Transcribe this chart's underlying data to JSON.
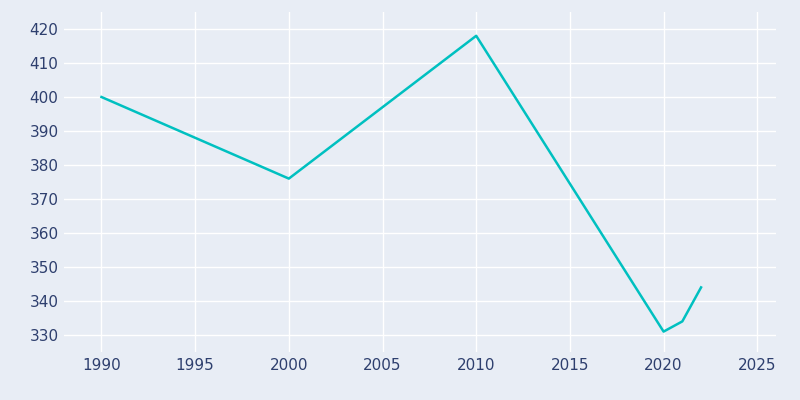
{
  "years": [
    1990,
    2000,
    2010,
    2020,
    2021,
    2022
  ],
  "population": [
    400,
    376,
    418,
    331,
    334,
    344
  ],
  "line_color": "#00C0C0",
  "bg_color": "#E8EDF5",
  "grid_color": "#FFFFFF",
  "xlim": [
    1988,
    2026
  ],
  "ylim": [
    325,
    425
  ],
  "xticks": [
    1990,
    1995,
    2000,
    2005,
    2010,
    2015,
    2020,
    2025
  ],
  "yticks": [
    330,
    340,
    350,
    360,
    370,
    380,
    390,
    400,
    410,
    420
  ],
  "linewidth": 1.8,
  "tick_label_color": "#2E3F6E",
  "tick_fontsize": 11
}
